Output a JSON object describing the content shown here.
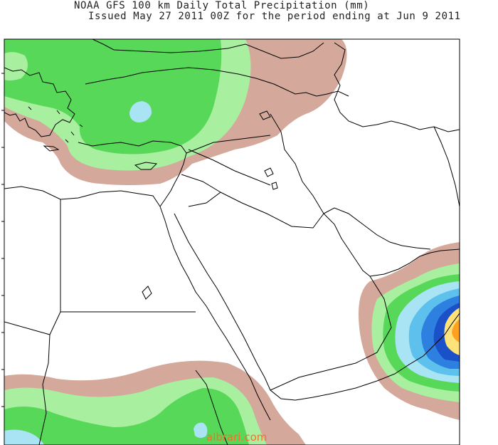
{
  "title": {
    "line1": "NOAA GFS 100 km Daily Total Precipitation (mm)",
    "line2": "Issued May 27 2011 00Z for the period ending at Jun 9 2011"
  },
  "watermark": "albrari.com",
  "colors": {
    "level_1": "#d4a99b",
    "level_2": "#a8f0a0",
    "level_3": "#58d858",
    "level_4": "#a8e4f4",
    "level_5": "#5ec0ec",
    "level_6": "#2e80e0",
    "level_7": "#1a50c8",
    "level_8": "#ffe27a",
    "level_9": "#ffa020",
    "coastline": "#000000",
    "frame": "#000000"
  },
  "icons": {
    "map": "precipitation-map"
  }
}
